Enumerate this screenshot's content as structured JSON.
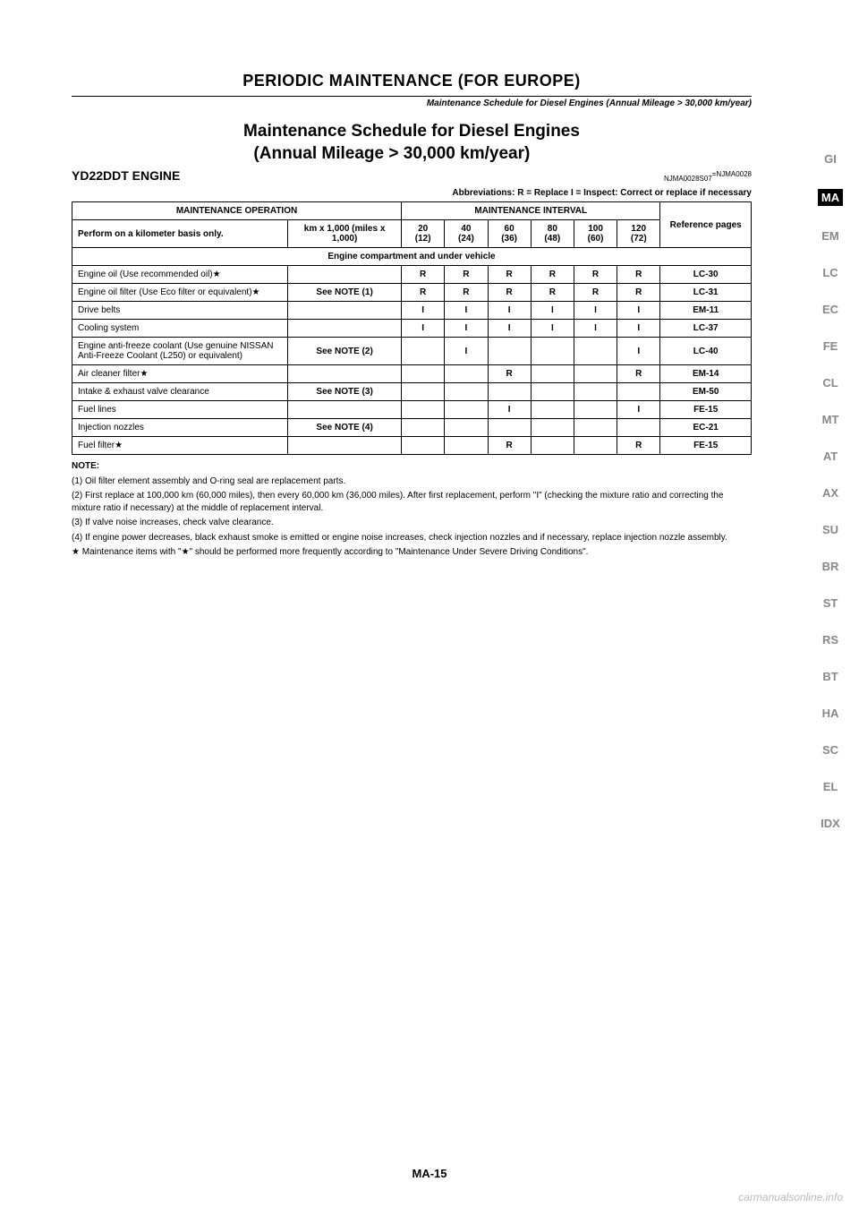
{
  "header": {
    "title": "PERIODIC MAINTENANCE (FOR EUROPE)",
    "subtitle": "Maintenance Schedule for Diesel Engines (Annual Mileage > 30,000 km/year)"
  },
  "schedule": {
    "title_l1": "Maintenance Schedule for Diesel Engines",
    "title_l2": "(Annual Mileage > 30,000 km/year)",
    "refcode1": "=NJMA0028",
    "engine": "YD22DDT ENGINE",
    "refcode2": "NJMA0028S07",
    "abbrev": "Abbreviations: R = Replace     I = Inspect: Correct or replace if necessary",
    "col_op": "MAINTENANCE OPERATION",
    "col_interval": "MAINTENANCE INTERVAL",
    "col_ref": "Reference pages",
    "perform": "Perform on a kilometer basis only.",
    "km_label": "km x 1,000\n(miles x 1,000)",
    "intervals": [
      {
        "km": "20",
        "mi": "(12)"
      },
      {
        "km": "40",
        "mi": "(24)"
      },
      {
        "km": "60",
        "mi": "(36)"
      },
      {
        "km": "80",
        "mi": "(48)"
      },
      {
        "km": "100",
        "mi": "(60)"
      },
      {
        "km": "120",
        "mi": "(72)"
      }
    ],
    "section": "Engine compartment and under vehicle",
    "rows": [
      {
        "op": "Engine oil (Use recommended oil)★",
        "note": "",
        "v": [
          "R",
          "R",
          "R",
          "R",
          "R",
          "R"
        ],
        "ref": "LC-30"
      },
      {
        "op": "Engine oil filter (Use Eco filter or equivalent)★",
        "note": "See NOTE (1)",
        "v": [
          "R",
          "R",
          "R",
          "R",
          "R",
          "R"
        ],
        "ref": "LC-31"
      },
      {
        "op": "Drive belts",
        "note": "",
        "v": [
          "I",
          "I",
          "I",
          "I",
          "I",
          "I"
        ],
        "ref": "EM-11"
      },
      {
        "op": "Cooling system",
        "note": "",
        "v": [
          "I",
          "I",
          "I",
          "I",
          "I",
          "I"
        ],
        "ref": "LC-37"
      },
      {
        "op": "Engine anti-freeze coolant (Use genuine NISSAN Anti-Freeze Coolant (L250) or equivalent)",
        "note": "See NOTE (2)",
        "v": [
          "",
          "I",
          "",
          "",
          "",
          "I"
        ],
        "ref": "LC-40"
      },
      {
        "op": "Air cleaner filter★",
        "note": "",
        "v": [
          "",
          "",
          "R",
          "",
          "",
          "R"
        ],
        "ref": "EM-14"
      },
      {
        "op": "Intake & exhaust valve clearance",
        "note": "See NOTE (3)",
        "v": [
          "",
          "",
          "",
          "",
          "",
          ""
        ],
        "ref": "EM-50"
      },
      {
        "op": "Fuel lines",
        "note": "",
        "v": [
          "",
          "",
          "I",
          "",
          "",
          "I"
        ],
        "ref": "FE-15"
      },
      {
        "op": "Injection nozzles",
        "note": "See NOTE (4)",
        "v": [
          "",
          "",
          "",
          "",
          "",
          ""
        ],
        "ref": "EC-21"
      },
      {
        "op": "Fuel filter★",
        "note": "",
        "v": [
          "",
          "",
          "R",
          "",
          "",
          "R"
        ],
        "ref": "FE-15"
      }
    ]
  },
  "notes": {
    "hdr": "NOTE:",
    "n1": "(1) Oil filter element assembly and O-ring seal are replacement parts.",
    "n2": "(2) First replace at 100,000 km (60,000 miles), then every 60,000 km (36,000 miles). After first replacement, perform \"I\" (checking the mixture ratio and correcting the mixture ratio if necessary) at the middle of replacement interval.",
    "n3": "(3) If valve noise increases, check valve clearance.",
    "n4": "(4) If engine power decreases, black exhaust smoke is emitted or engine noise increases, check injection nozzles and if necessary, replace injection nozzle assembly.",
    "star": "★ Maintenance items with \"★\" should be performed more frequently according to \"Maintenance Under Severe Driving Conditions\"."
  },
  "tabs": [
    "GI",
    "MA",
    "EM",
    "LC",
    "EC",
    "FE",
    "CL",
    "MT",
    "AT",
    "AX",
    "SU",
    "BR",
    "ST",
    "RS",
    "BT",
    "HA",
    "SC",
    "EL",
    "IDX"
  ],
  "active_tab": 1,
  "footer": "MA-15",
  "watermark": "carmanualsonline.info"
}
